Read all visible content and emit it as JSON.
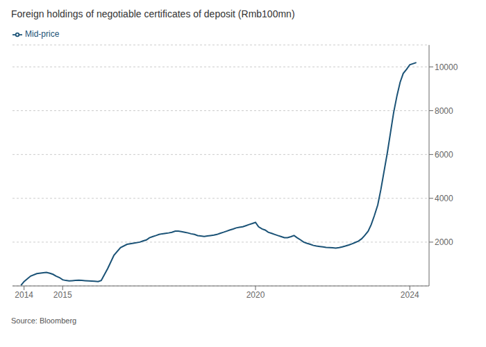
{
  "chart_data": {
    "type": "line",
    "title": "Foreign holdings of negotiable certificates of deposit (Rmb100mn)",
    "source": "Source: Bloomberg",
    "x": [
      2013.92,
      2014.0,
      2014.17,
      2014.33,
      2014.5,
      2014.58,
      2014.67,
      2014.75,
      2014.83,
      2014.92,
      2015.0,
      2015.08,
      2015.17,
      2015.25,
      2015.33,
      2015.42,
      2015.5,
      2015.58,
      2015.67,
      2015.75,
      2015.83,
      2015.92,
      2016.0,
      2016.17,
      2016.33,
      2016.5,
      2016.67,
      2016.83,
      2017.0,
      2017.08,
      2017.17,
      2017.25,
      2017.33,
      2017.42,
      2017.5,
      2017.58,
      2017.67,
      2017.75,
      2017.83,
      2017.92,
      2018.0,
      2018.08,
      2018.17,
      2018.25,
      2018.33,
      2018.42,
      2018.5,
      2018.58,
      2018.67,
      2018.75,
      2018.83,
      2018.92,
      2019.0,
      2019.08,
      2019.17,
      2019.25,
      2019.33,
      2019.42,
      2019.5,
      2019.58,
      2019.67,
      2019.75,
      2019.83,
      2019.92,
      2020.0,
      2020.08,
      2020.17,
      2020.25,
      2020.33,
      2020.42,
      2020.5,
      2020.58,
      2020.67,
      2020.75,
      2020.83,
      2020.92,
      2021.0,
      2021.08,
      2021.17,
      2021.25,
      2021.33,
      2021.42,
      2021.5,
      2021.58,
      2021.67,
      2021.75,
      2021.83,
      2021.92,
      2022.0,
      2022.08,
      2022.17,
      2022.25,
      2022.33,
      2022.42,
      2022.5,
      2022.58,
      2022.67,
      2022.75,
      2022.83,
      2022.92,
      2023.0,
      2023.08,
      2023.17,
      2023.25,
      2023.33,
      2023.42,
      2023.5,
      2023.58,
      2023.67,
      2023.75,
      2023.83,
      2023.92,
      2024.0,
      2024.17
    ],
    "series": [
      {
        "name": "Mid-price",
        "color": "#1a5276",
        "values": [
          30,
          200,
          450,
          560,
          600,
          620,
          580,
          530,
          450,
          380,
          280,
          250,
          230,
          240,
          250,
          260,
          250,
          240,
          230,
          220,
          210,
          200,
          250,
          800,
          1400,
          1750,
          1900,
          1950,
          2000,
          2050,
          2100,
          2200,
          2250,
          2300,
          2350,
          2380,
          2400,
          2420,
          2450,
          2500,
          2500,
          2480,
          2450,
          2420,
          2380,
          2350,
          2300,
          2280,
          2260,
          2280,
          2300,
          2320,
          2350,
          2400,
          2450,
          2500,
          2550,
          2600,
          2650,
          2680,
          2700,
          2750,
          2800,
          2850,
          2900,
          2700,
          2600,
          2550,
          2450,
          2400,
          2350,
          2300,
          2250,
          2200,
          2200,
          2250,
          2300,
          2200,
          2100,
          2000,
          1950,
          1900,
          1850,
          1820,
          1800,
          1780,
          1760,
          1750,
          1740,
          1730,
          1750,
          1780,
          1820,
          1870,
          1920,
          1980,
          2050,
          2150,
          2300,
          2500,
          2800,
          3200,
          3700,
          4400,
          5200,
          6100,
          7000,
          7900,
          8700,
          9300,
          9700,
          9900,
          10100,
          10200
        ]
      }
    ],
    "xlim": [
      2013.7,
      2024.5
    ],
    "xticks": [
      2014,
      2015,
      2020,
      2024
    ],
    "ylim": [
      0,
      11000
    ],
    "yticks": [
      2000,
      4000,
      6000,
      8000,
      10000
    ],
    "grid": true,
    "legend": "upper left"
  }
}
